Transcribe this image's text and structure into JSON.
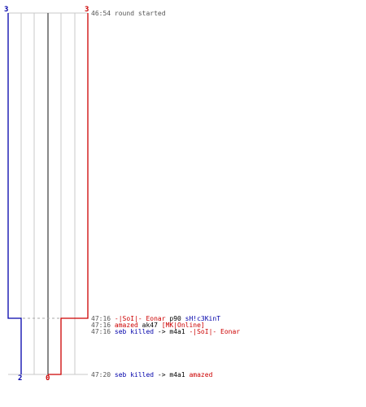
{
  "top_scores": {
    "blue": "3",
    "red": "3"
  },
  "bottom_scores": {
    "blue": "2",
    "red": "0"
  },
  "colors": {
    "blue": "#0000aa",
    "red": "#cc0000",
    "grid": "#c8c8c8",
    "center": "#555555",
    "text": "#555555"
  },
  "events": [
    {
      "time": "46:54",
      "parts": [
        {
          "text": "round started",
          "color": "gray"
        }
      ]
    },
    {
      "time": "47:16",
      "parts": [
        {
          "text": "-|SoI|- Eonar",
          "color": "red"
        },
        {
          "text": "p90",
          "color": "black"
        },
        {
          "text": "sH!c3KinT",
          "color": "blue"
        }
      ]
    },
    {
      "time": "47:16",
      "parts": [
        {
          "text": "amazed",
          "color": "red"
        },
        {
          "text": "ak47",
          "color": "black"
        },
        {
          "text": "[MK|Online]",
          "color": "red"
        }
      ]
    },
    {
      "time": "47:16",
      "parts": [
        {
          "text": "seb killed",
          "color": "blue"
        },
        {
          "text": "->",
          "color": "black"
        },
        {
          "text": "m4a1",
          "color": "black"
        },
        {
          "text": "-|SoI|- Eonar",
          "color": "red"
        }
      ]
    },
    {
      "time": "47:20",
      "parts": [
        {
          "text": "seb killed",
          "color": "blue"
        },
        {
          "text": "->",
          "color": "black"
        },
        {
          "text": "m4a1",
          "color": "black"
        },
        {
          "text": "amazed",
          "color": "red"
        }
      ]
    }
  ]
}
